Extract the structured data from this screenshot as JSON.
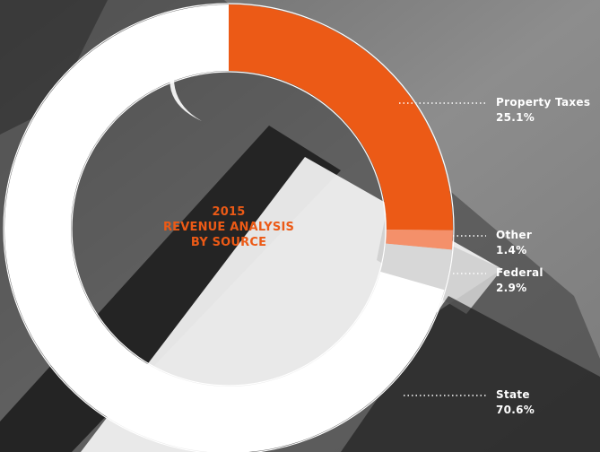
{
  "chart_data": {
    "type": "pie",
    "title_lines": [
      "2015",
      "REVENUE ANALYSIS",
      "BY SOURCE"
    ],
    "categories": [
      "Property Taxes",
      "Other",
      "Federal",
      "State"
    ],
    "values": [
      25.1,
      1.4,
      2.9,
      70.6
    ],
    "value_labels": [
      "25.1%",
      "1.4%",
      "2.9%",
      "70.6%"
    ],
    "colors": [
      "#ec5a16",
      "#f4906a",
      "#d7d7d7",
      "#ffffff"
    ],
    "start_angle_deg": 0
  },
  "accent_color": "#ec5a16"
}
